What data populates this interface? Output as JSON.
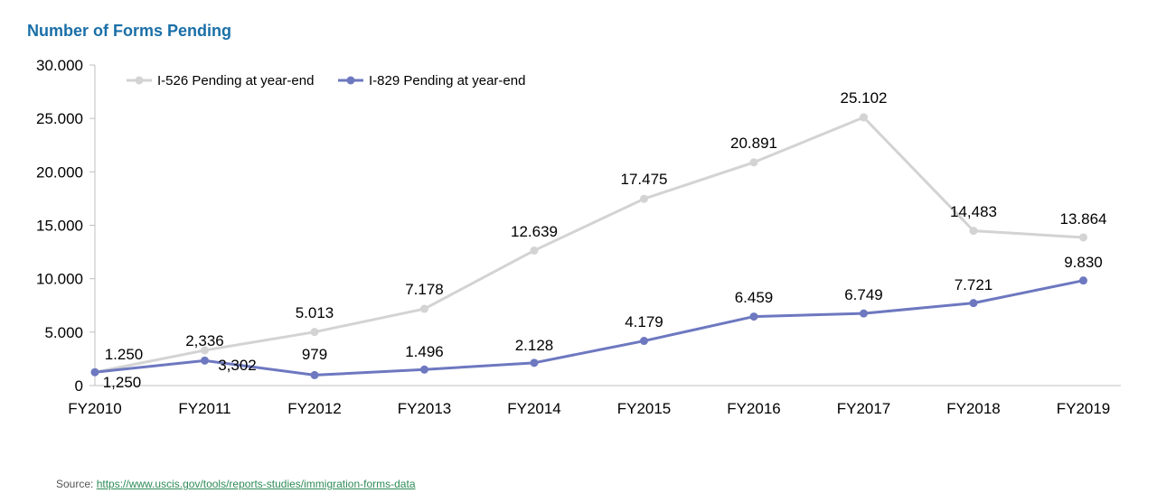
{
  "title": "Number of Forms Pending",
  "source": {
    "label": "Source:",
    "link_text": "https://www.uscis.gov/tools/reports-studies/immigration-forms-data"
  },
  "chart_data": {
    "type": "line",
    "title": "Number of Forms Pending",
    "xlabel": "",
    "ylabel": "",
    "categories": [
      "FY2010",
      "FY2011",
      "FY2012",
      "FY2013",
      "FY2014",
      "FY2015",
      "FY2016",
      "FY2017",
      "FY2018",
      "FY2019"
    ],
    "ylim": [
      0,
      30000
    ],
    "yticks": [
      0,
      5000,
      10000,
      15000,
      20000,
      25000,
      30000
    ],
    "ytick_labels": [
      "0",
      "5.000",
      "10.000",
      "15.000",
      "20.000",
      "25.000",
      "30.000"
    ],
    "legend_position": "top-left",
    "grid": false,
    "series": [
      {
        "name": "I-526 Pending at year-end",
        "color": "#d3d3d3",
        "values": [
          1250,
          3302,
          5013,
          7178,
          12639,
          17475,
          20891,
          25102,
          14483,
          13864
        ],
        "labels": [
          "1,250",
          "3,302",
          "5.013",
          "7.178",
          "12.639",
          "17.475",
          "20.891",
          "25.102",
          "14,483",
          "13.864"
        ]
      },
      {
        "name": "I-829 Pending at year-end",
        "color": "#6d78c0",
        "values": [
          1250,
          2336,
          979,
          1496,
          2128,
          4179,
          6459,
          6749,
          7721,
          9830
        ],
        "labels": [
          "1.250",
          "2,336",
          "979",
          "1.496",
          "2.128",
          "4.179",
          "6.459",
          "6.749",
          "7.721",
          "9.830"
        ]
      }
    ]
  }
}
